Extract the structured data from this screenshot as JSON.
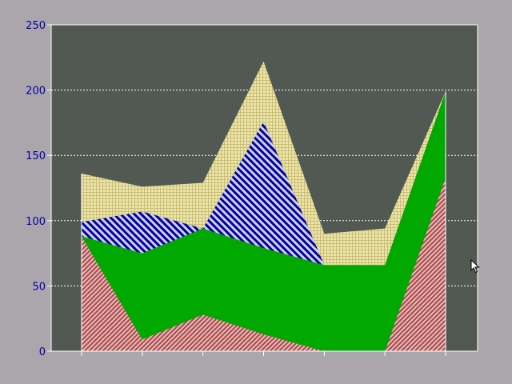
{
  "chart_data": {
    "type": "area",
    "stacked": true,
    "title": "",
    "xlabel": "",
    "ylabel": "",
    "x": [
      1,
      2,
      3,
      4,
      5,
      6,
      7
    ],
    "xticks_labeled": false,
    "ylim": [
      0,
      250
    ],
    "yticks": [
      "0",
      "50",
      "100",
      "150",
      "200",
      "250"
    ],
    "grid": "horizontal dashed",
    "legend": "none",
    "series": [
      {
        "values": [
          88,
          9,
          28,
          13,
          0,
          0,
          133
        ],
        "color": "#c83c3c",
        "pattern": "diagonal-hatch-red"
      },
      {
        "values": [
          0,
          66,
          66,
          66,
          66,
          66,
          66
        ],
        "color": "#00a800",
        "pattern": "solid"
      },
      {
        "values": [
          11,
          32,
          0,
          97,
          0,
          0,
          0
        ],
        "color": "#0000a8",
        "pattern": "diagonal-hatch-blue"
      },
      {
        "values": [
          37,
          19,
          35,
          46,
          24,
          28,
          0
        ],
        "color": "#e0d890",
        "pattern": "crosshatch-yellow"
      }
    ]
  },
  "colors": {
    "page_background": "#aba6ab",
    "plot_background": "#525852",
    "axis_text": "#0000aa",
    "grid_line": "#ffffff"
  },
  "cursor_icon": "arrow-pointer-icon"
}
